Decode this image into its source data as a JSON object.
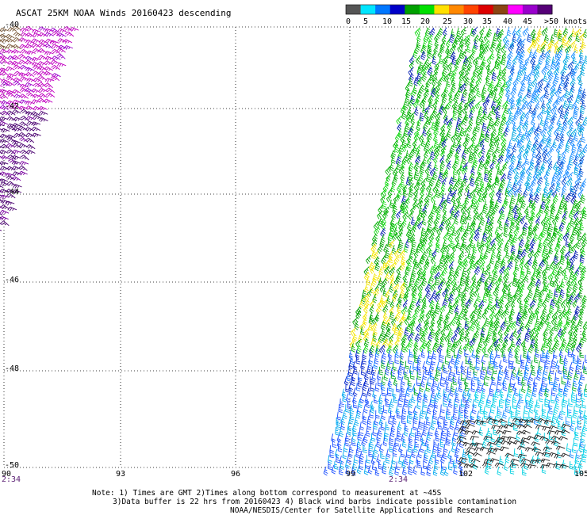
{
  "title": "ASCAT 25KM NOAA Winds 20160423 descending",
  "colorbar": {
    "labels": [
      "0",
      "5",
      "10",
      "15",
      "20",
      "25",
      "30",
      "35",
      "40",
      "45",
      ">50 knots"
    ],
    "colors": [
      "#555555",
      "#00e5ff",
      "#0077ff",
      "#0000c8",
      "#00a000",
      "#00e000",
      "#ffe000",
      "#ff8800",
      "#ff4400",
      "#dd0000",
      "#8b4513",
      "#ff00ff",
      "#9900cc",
      "#550077"
    ]
  },
  "lat_labels": [
    "-40",
    "-42",
    "-44",
    "-46",
    "-48",
    "-50"
  ],
  "lon_labels": [
    "90",
    "93",
    "96",
    "99",
    "102",
    "105"
  ],
  "time_labels": [
    "2:34",
    "2:34"
  ],
  "notes": {
    "line1": "Note: 1) Times are GMT 2)Times along bottom correspond to measurement at ~45S",
    "line2": "3)Data buffer is 22 hrs from 20160423 4) Black wind barbs indicate possible contamination",
    "line3": "NOAA/NESDIS/Center for Satellite Applications and Research"
  },
  "map": {
    "lat_range": [
      -50,
      -40
    ],
    "lon_range": [
      90,
      105
    ],
    "swaths": [
      "west-purple-swath",
      "east-main-swath"
    ]
  }
}
